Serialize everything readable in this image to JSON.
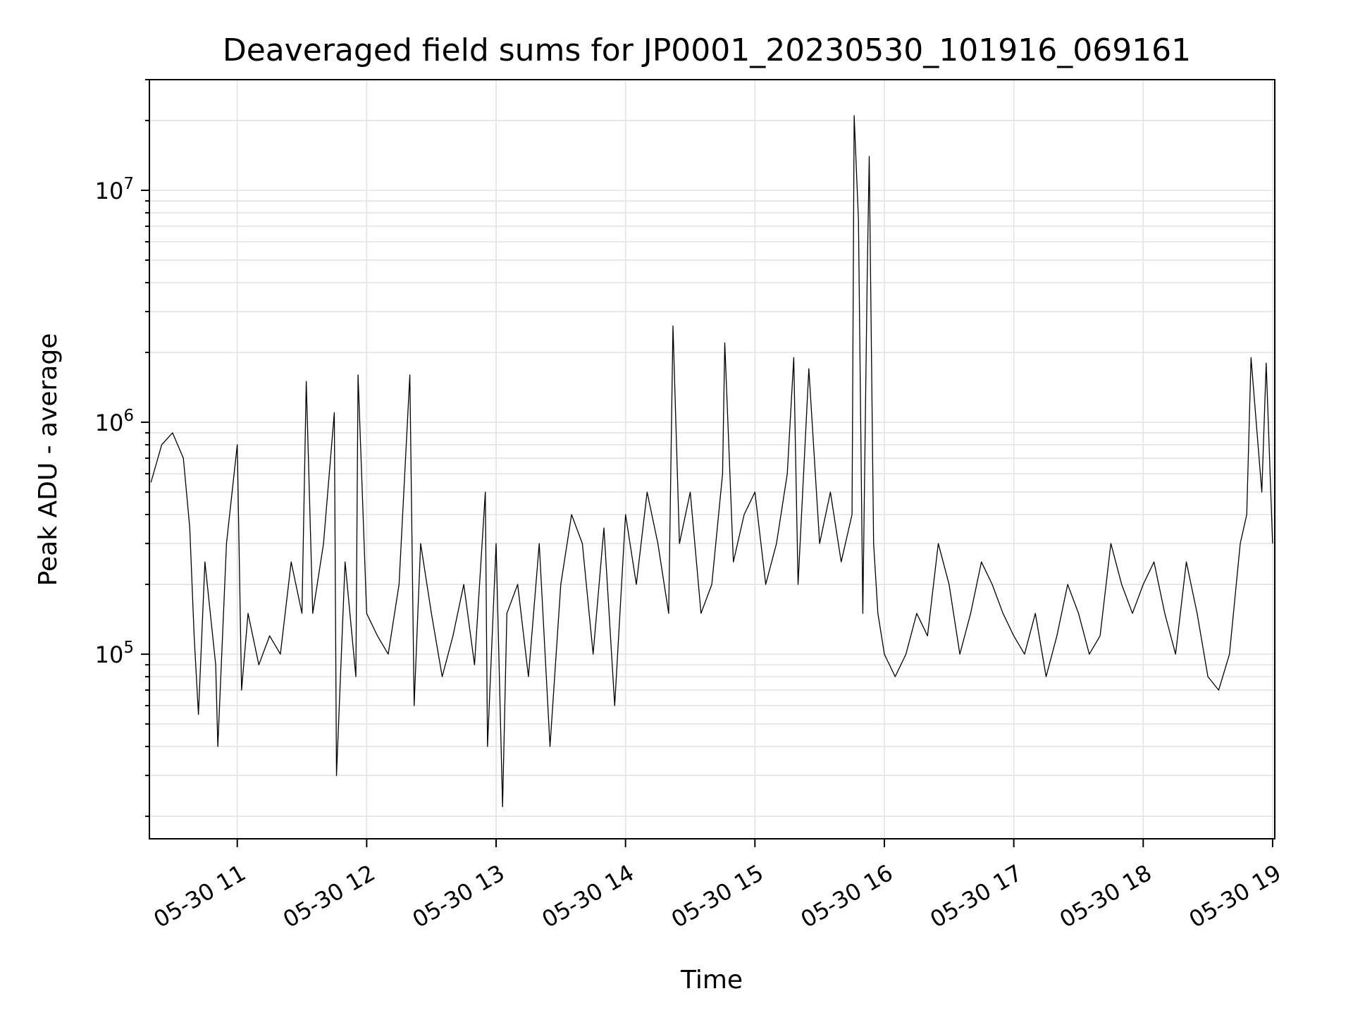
{
  "chart_data": {
    "type": "line",
    "title": "Deaveraged field sums for JP0001_20230530_101916_069161",
    "xlabel": "Time",
    "ylabel": "Peak ADU - average",
    "xscale": "time",
    "yscale": "log",
    "xlim": [
      "2023-05-30 10:19:16",
      "2023-05-30 19:01:00"
    ],
    "ylim": [
      16000,
      30000000
    ],
    "grid": true,
    "line_color": "#000000",
    "x_ticks": [
      "05-30 11",
      "05-30 12",
      "05-30 13",
      "05-30 14",
      "05-30 15",
      "05-30 16",
      "05-30 17",
      "05-30 18",
      "05-30 19"
    ],
    "y_ticks": [
      {
        "value": 100000,
        "base": "10",
        "exp": "5"
      },
      {
        "value": 1000000,
        "base": "10",
        "exp": "6"
      },
      {
        "value": 10000000,
        "base": "10",
        "exp": "7"
      }
    ],
    "series": [
      {
        "x": [
          "2023-05-30 10:20",
          "2023-05-30 10:25",
          "2023-05-30 10:30",
          "2023-05-30 10:35",
          "2023-05-30 10:38",
          "2023-05-30 10:40",
          "2023-05-30 10:42",
          "2023-05-30 10:45",
          "2023-05-30 10:50",
          "2023-05-30 10:51",
          "2023-05-30 10:55",
          "2023-05-30 11:00",
          "2023-05-30 11:02",
          "2023-05-30 11:05",
          "2023-05-30 11:10",
          "2023-05-30 11:15",
          "2023-05-30 11:20",
          "2023-05-30 11:25",
          "2023-05-30 11:30",
          "2023-05-30 11:32",
          "2023-05-30 11:35",
          "2023-05-30 11:40",
          "2023-05-30 11:45",
          "2023-05-30 11:46",
          "2023-05-30 11:50",
          "2023-05-30 11:55",
          "2023-05-30 11:56",
          "2023-05-30 12:00",
          "2023-05-30 12:05",
          "2023-05-30 12:10",
          "2023-05-30 12:15",
          "2023-05-30 12:20",
          "2023-05-30 12:22",
          "2023-05-30 12:25",
          "2023-05-30 12:30",
          "2023-05-30 12:35",
          "2023-05-30 12:40",
          "2023-05-30 12:45",
          "2023-05-30 12:50",
          "2023-05-30 12:55",
          "2023-05-30 12:56",
          "2023-05-30 13:00",
          "2023-05-30 13:03",
          "2023-05-30 13:05",
          "2023-05-30 13:10",
          "2023-05-30 13:15",
          "2023-05-30 13:20",
          "2023-05-30 13:25",
          "2023-05-30 13:30",
          "2023-05-30 13:35",
          "2023-05-30 13:40",
          "2023-05-30 13:45",
          "2023-05-30 13:50",
          "2023-05-30 13:55",
          "2023-05-30 14:00",
          "2023-05-30 14:05",
          "2023-05-30 14:10",
          "2023-05-30 14:15",
          "2023-05-30 14:20",
          "2023-05-30 14:22",
          "2023-05-30 14:25",
          "2023-05-30 14:30",
          "2023-05-30 14:35",
          "2023-05-30 14:40",
          "2023-05-30 14:45",
          "2023-05-30 14:46",
          "2023-05-30 14:50",
          "2023-05-30 14:55",
          "2023-05-30 15:00",
          "2023-05-30 15:05",
          "2023-05-30 15:10",
          "2023-05-30 15:15",
          "2023-05-30 15:18",
          "2023-05-30 15:20",
          "2023-05-30 15:25",
          "2023-05-30 15:30",
          "2023-05-30 15:35",
          "2023-05-30 15:40",
          "2023-05-30 15:45",
          "2023-05-30 15:46",
          "2023-05-30 15:48",
          "2023-05-30 15:50",
          "2023-05-30 15:52",
          "2023-05-30 15:53",
          "2023-05-30 15:55",
          "2023-05-30 15:57",
          "2023-05-30 16:00",
          "2023-05-30 16:05",
          "2023-05-30 16:10",
          "2023-05-30 16:15",
          "2023-05-30 16:20",
          "2023-05-30 16:25",
          "2023-05-30 16:30",
          "2023-05-30 16:35",
          "2023-05-30 16:40",
          "2023-05-30 16:45",
          "2023-05-30 16:50",
          "2023-05-30 16:55",
          "2023-05-30 17:00",
          "2023-05-30 17:05",
          "2023-05-30 17:10",
          "2023-05-30 17:15",
          "2023-05-30 17:20",
          "2023-05-30 17:25",
          "2023-05-30 17:30",
          "2023-05-30 17:35",
          "2023-05-30 17:40",
          "2023-05-30 17:45",
          "2023-05-30 17:50",
          "2023-05-30 17:55",
          "2023-05-30 18:00",
          "2023-05-30 18:05",
          "2023-05-30 18:10",
          "2023-05-30 18:15",
          "2023-05-30 18:20",
          "2023-05-30 18:25",
          "2023-05-30 18:30",
          "2023-05-30 18:35",
          "2023-05-30 18:40",
          "2023-05-30 18:45",
          "2023-05-30 18:48",
          "2023-05-30 18:50",
          "2023-05-30 18:55",
          "2023-05-30 18:57",
          "2023-05-30 19:00"
        ],
        "y": [
          550000,
          800000,
          900000,
          700000,
          350000,
          120000,
          55000,
          250000,
          90000,
          40000,
          300000,
          800000,
          70000,
          150000,
          90000,
          120000,
          100000,
          250000,
          150000,
          1500000,
          150000,
          300000,
          1100000,
          30000,
          250000,
          80000,
          1600000,
          150000,
          120000,
          100000,
          200000,
          1600000,
          60000,
          300000,
          150000,
          80000,
          120000,
          200000,
          90000,
          500000,
          40000,
          300000,
          22000,
          150000,
          200000,
          80000,
          300000,
          40000,
          200000,
          400000,
          300000,
          100000,
          350000,
          60000,
          400000,
          200000,
          500000,
          300000,
          150000,
          2600000,
          300000,
          500000,
          150000,
          200000,
          600000,
          2200000,
          250000,
          400000,
          500000,
          200000,
          300000,
          600000,
          1900000,
          200000,
          1700000,
          300000,
          500000,
          250000,
          400000,
          21000000,
          7500000,
          150000,
          4000000,
          14000000,
          300000,
          150000,
          100000,
          80000,
          100000,
          150000,
          120000,
          300000,
          200000,
          100000,
          150000,
          250000,
          200000,
          150000,
          120000,
          100000,
          150000,
          80000,
          120000,
          200000,
          150000,
          100000,
          120000,
          300000,
          200000,
          150000,
          200000,
          250000,
          150000,
          100000,
          250000,
          150000,
          80000,
          70000,
          100000,
          300000,
          400000,
          1900000,
          500000,
          1800000,
          300000
        ]
      }
    ]
  }
}
